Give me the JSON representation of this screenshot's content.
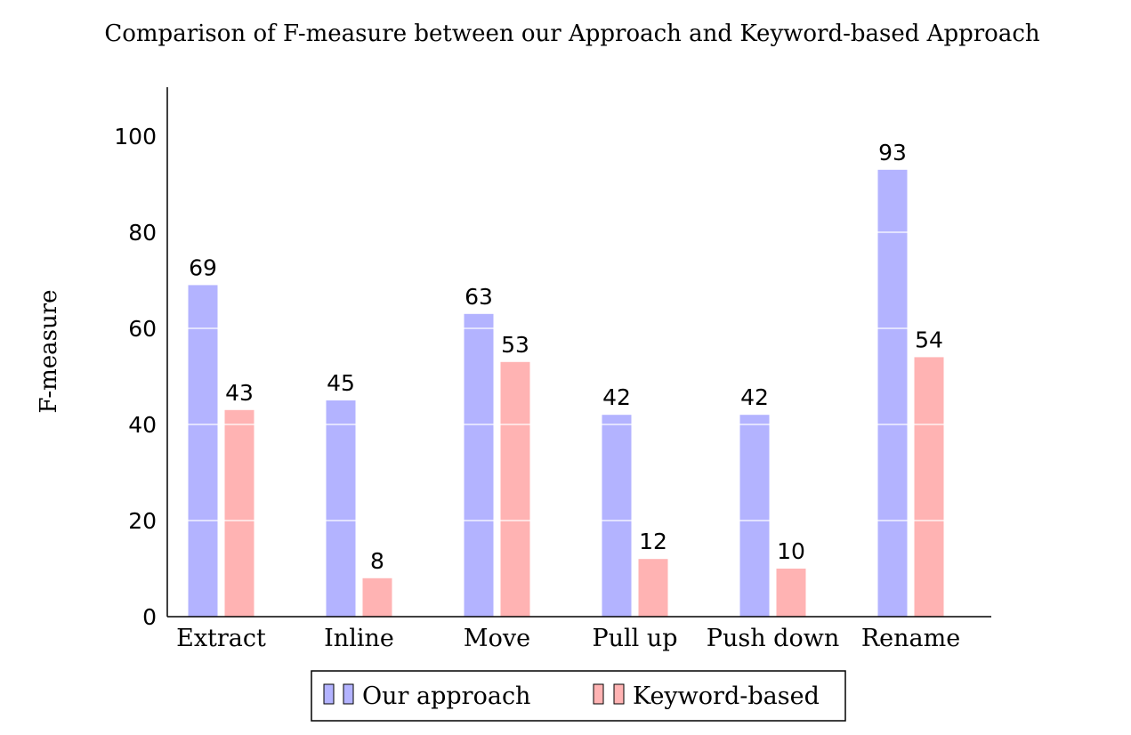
{
  "chart_data": {
    "type": "bar",
    "title": "Comparison of F-measure between our Approach and Keyword-based Approach",
    "xlabel": "",
    "ylabel": "F-measure",
    "ylim": [
      0,
      110
    ],
    "yticks": [
      0,
      20,
      40,
      60,
      80,
      100
    ],
    "grid": "horizontal gridlines drawn in white over bars",
    "legend_position": "bottom-center",
    "categories": [
      "Extract",
      "Inline",
      "Move",
      "Pull up",
      "Push down",
      "Rename"
    ],
    "series": [
      {
        "name": "Our approach",
        "color": "#b3b3ff",
        "values": [
          69,
          45,
          63,
          42,
          42,
          93
        ]
      },
      {
        "name": "Keyword-based",
        "color": "#ffb3b3",
        "values": [
          43,
          8,
          53,
          12,
          10,
          54
        ]
      }
    ],
    "data_labels": true
  }
}
